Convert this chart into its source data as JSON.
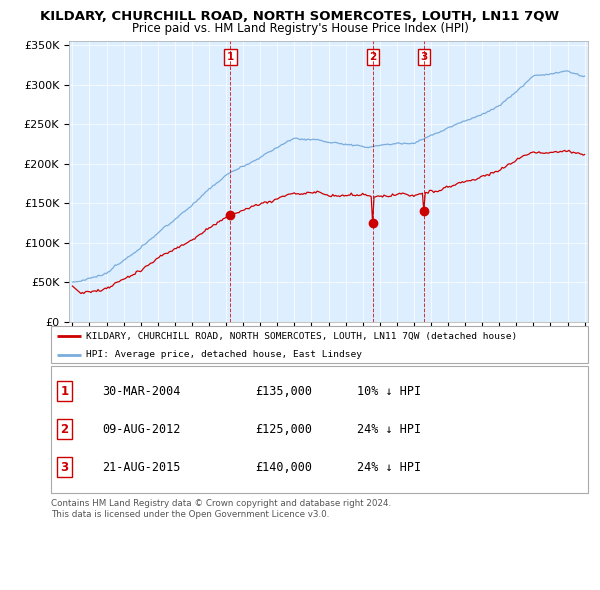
{
  "title": "KILDARY, CHURCHILL ROAD, NORTH SOMERCOTES, LOUTH, LN11 7QW",
  "subtitle": "Price paid vs. HM Land Registry's House Price Index (HPI)",
  "legend_line1": "KILDARY, CHURCHILL ROAD, NORTH SOMERCOTES, LOUTH, LN11 7QW (detached house)",
  "legend_line2": "HPI: Average price, detached house, East Lindsey",
  "sale_color": "#cc0000",
  "hpi_color": "#7aacdc",
  "bg_color": "#ddeeff",
  "yticks": [
    0,
    50000,
    100000,
    150000,
    200000,
    250000,
    300000,
    350000
  ],
  "ytick_labels": [
    "£0",
    "£50K",
    "£100K",
    "£150K",
    "£200K",
    "£250K",
    "£300K",
    "£350K"
  ],
  "transactions": [
    {
      "label": "1",
      "date": "30-MAR-2004",
      "price": 135000,
      "pct": "10%",
      "dir": "↓",
      "x_year": 2004.25
    },
    {
      "label": "2",
      "date": "09-AUG-2012",
      "price": 125000,
      "pct": "24%",
      "dir": "↓",
      "x_year": 2012.6
    },
    {
      "label": "3",
      "date": "21-AUG-2015",
      "price": 140000,
      "pct": "24%",
      "dir": "↓",
      "x_year": 2015.6
    }
  ],
  "footer_line1": "Contains HM Land Registry data © Crown copyright and database right 2024.",
  "footer_line2": "This data is licensed under the Open Government Licence v3.0.",
  "xmin": 1995,
  "xmax": 2025.0,
  "ymin": 0,
  "ymax": 350000
}
